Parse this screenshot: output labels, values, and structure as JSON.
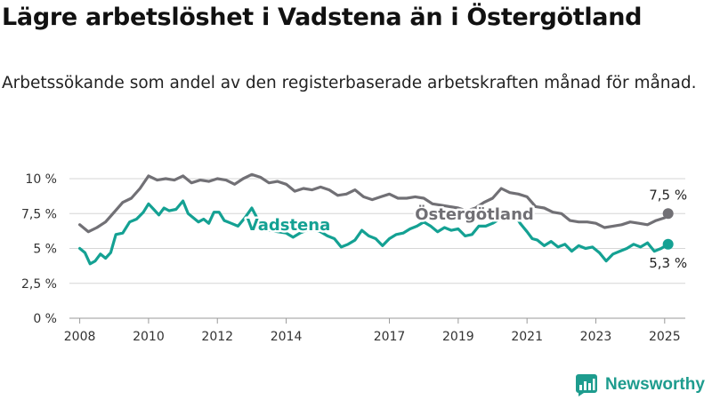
{
  "title": "Lägre arbetslöshet i Vadstena än i Östergötland",
  "subtitle": "Arbetssökande som andel av den registerbaserade arbetskraften månad för månad.",
  "brand": {
    "name": "Newsworthy",
    "icon": "bar-chart-logo-icon"
  },
  "colors": {
    "vadstena": "#14a193",
    "ostergotland": "#717075",
    "grid": "#d6d6d6",
    "brand": "#1e9c8e"
  },
  "chart_data": {
    "type": "line",
    "ylim": [
      0,
      10.5
    ],
    "xlim": [
      2007.7,
      2025.6
    ],
    "y_ticks": [
      0,
      2.5,
      5,
      7.5,
      10
    ],
    "y_tick_labels": [
      "0 %",
      "2,5 %",
      "5 %",
      "7,5 %",
      "10 %"
    ],
    "x_ticks": [
      2008,
      2010,
      2012,
      2014,
      2017,
      2019,
      2021,
      2023,
      2025
    ],
    "x_tick_labels": [
      "2008",
      "2010",
      "2012",
      "2014",
      "2017",
      "2019",
      "2021",
      "2023",
      "2025"
    ],
    "grid": true,
    "series": [
      {
        "name": "Östergötland",
        "end_label": "7,5 %",
        "points": [
          [
            2008.0,
            6.7
          ],
          [
            2008.25,
            6.2
          ],
          [
            2008.5,
            6.5
          ],
          [
            2008.75,
            6.9
          ],
          [
            2009.0,
            7.6
          ],
          [
            2009.25,
            8.3
          ],
          [
            2009.5,
            8.6
          ],
          [
            2009.75,
            9.3
          ],
          [
            2010.0,
            10.2
          ],
          [
            2010.25,
            9.9
          ],
          [
            2010.5,
            10.0
          ],
          [
            2010.75,
            9.9
          ],
          [
            2011.0,
            10.2
          ],
          [
            2011.25,
            9.7
          ],
          [
            2011.5,
            9.9
          ],
          [
            2011.75,
            9.8
          ],
          [
            2012.0,
            10.0
          ],
          [
            2012.25,
            9.9
          ],
          [
            2012.5,
            9.6
          ],
          [
            2012.75,
            10.0
          ],
          [
            2013.0,
            10.3
          ],
          [
            2013.25,
            10.1
          ],
          [
            2013.5,
            9.7
          ],
          [
            2013.75,
            9.8
          ],
          [
            2014.0,
            9.6
          ],
          [
            2014.25,
            9.1
          ],
          [
            2014.5,
            9.3
          ],
          [
            2014.75,
            9.2
          ],
          [
            2015.0,
            9.4
          ],
          [
            2015.25,
            9.2
          ],
          [
            2015.5,
            8.8
          ],
          [
            2015.75,
            8.9
          ],
          [
            2016.0,
            9.2
          ],
          [
            2016.25,
            8.7
          ],
          [
            2016.5,
            8.5
          ],
          [
            2016.75,
            8.7
          ],
          [
            2017.0,
            8.9
          ],
          [
            2017.25,
            8.6
          ],
          [
            2017.5,
            8.6
          ],
          [
            2017.75,
            8.7
          ],
          [
            2018.0,
            8.6
          ],
          [
            2018.25,
            8.2
          ],
          [
            2018.5,
            8.1
          ],
          [
            2018.75,
            8.0
          ],
          [
            2019.0,
            7.9
          ],
          [
            2019.25,
            7.7
          ],
          [
            2019.5,
            7.9
          ],
          [
            2019.75,
            8.3
          ],
          [
            2020.0,
            8.6
          ],
          [
            2020.25,
            9.3
          ],
          [
            2020.5,
            9.0
          ],
          [
            2020.75,
            8.9
          ],
          [
            2021.0,
            8.7
          ],
          [
            2021.25,
            8.0
          ],
          [
            2021.5,
            7.9
          ],
          [
            2021.75,
            7.6
          ],
          [
            2022.0,
            7.5
          ],
          [
            2022.25,
            7.0
          ],
          [
            2022.5,
            6.9
          ],
          [
            2022.75,
            6.9
          ],
          [
            2023.0,
            6.8
          ],
          [
            2023.25,
            6.5
          ],
          [
            2023.5,
            6.6
          ],
          [
            2023.75,
            6.7
          ],
          [
            2024.0,
            6.9
          ],
          [
            2024.25,
            6.8
          ],
          [
            2024.5,
            6.7
          ],
          [
            2024.75,
            7.0
          ],
          [
            2025.0,
            7.2
          ],
          [
            2025.1,
            7.5
          ]
        ]
      },
      {
        "name": "Vadstena",
        "end_label": "5,3 %",
        "points": [
          [
            2008.0,
            5.0
          ],
          [
            2008.15,
            4.7
          ],
          [
            2008.3,
            3.9
          ],
          [
            2008.45,
            4.1
          ],
          [
            2008.6,
            4.6
          ],
          [
            2008.75,
            4.3
          ],
          [
            2008.9,
            4.7
          ],
          [
            2009.05,
            6.0
          ],
          [
            2009.25,
            6.1
          ],
          [
            2009.45,
            6.9
          ],
          [
            2009.65,
            7.1
          ],
          [
            2009.85,
            7.6
          ],
          [
            2010.0,
            8.2
          ],
          [
            2010.15,
            7.8
          ],
          [
            2010.3,
            7.4
          ],
          [
            2010.45,
            7.9
          ],
          [
            2010.6,
            7.7
          ],
          [
            2010.8,
            7.8
          ],
          [
            2011.0,
            8.4
          ],
          [
            2011.15,
            7.5
          ],
          [
            2011.3,
            7.2
          ],
          [
            2011.45,
            6.9
          ],
          [
            2011.6,
            7.1
          ],
          [
            2011.75,
            6.8
          ],
          [
            2011.9,
            7.6
          ],
          [
            2012.05,
            7.6
          ],
          [
            2012.2,
            7.0
          ],
          [
            2012.4,
            6.8
          ],
          [
            2012.6,
            6.6
          ],
          [
            2012.8,
            7.2
          ],
          [
            2013.0,
            7.9
          ],
          [
            2013.15,
            7.2
          ],
          [
            2013.3,
            6.6
          ],
          [
            2013.5,
            6.3
          ],
          [
            2013.75,
            6.2
          ],
          [
            2014.0,
            6.1
          ],
          [
            2014.2,
            5.8
          ],
          [
            2014.4,
            6.1
          ],
          [
            2014.6,
            6.3
          ],
          [
            2014.8,
            6.3
          ],
          [
            2015.0,
            6.2
          ],
          [
            2015.2,
            5.9
          ],
          [
            2015.4,
            5.7
          ],
          [
            2015.6,
            5.1
          ],
          [
            2015.8,
            5.3
          ],
          [
            2016.0,
            5.6
          ],
          [
            2016.2,
            6.3
          ],
          [
            2016.4,
            5.9
          ],
          [
            2016.6,
            5.7
          ],
          [
            2016.8,
            5.2
          ],
          [
            2017.0,
            5.7
          ],
          [
            2017.2,
            6.0
          ],
          [
            2017.4,
            6.1
          ],
          [
            2017.6,
            6.4
          ],
          [
            2017.8,
            6.6
          ],
          [
            2018.0,
            6.9
          ],
          [
            2018.2,
            6.6
          ],
          [
            2018.4,
            6.2
          ],
          [
            2018.6,
            6.5
          ],
          [
            2018.8,
            6.3
          ],
          [
            2019.0,
            6.4
          ],
          [
            2019.2,
            5.9
          ],
          [
            2019.4,
            6.0
          ],
          [
            2019.6,
            6.6
          ],
          [
            2019.8,
            6.6
          ],
          [
            2020.0,
            6.8
          ],
          [
            2020.2,
            7.1
          ],
          [
            2020.4,
            7.3
          ],
          [
            2020.6,
            7.6
          ],
          [
            2020.8,
            6.8
          ],
          [
            2021.0,
            6.2
          ],
          [
            2021.15,
            5.7
          ],
          [
            2021.3,
            5.6
          ],
          [
            2021.5,
            5.2
          ],
          [
            2021.7,
            5.5
          ],
          [
            2021.9,
            5.1
          ],
          [
            2022.1,
            5.3
          ],
          [
            2022.3,
            4.8
          ],
          [
            2022.5,
            5.2
          ],
          [
            2022.7,
            5.0
          ],
          [
            2022.9,
            5.1
          ],
          [
            2023.1,
            4.7
          ],
          [
            2023.3,
            4.1
          ],
          [
            2023.5,
            4.6
          ],
          [
            2023.7,
            4.8
          ],
          [
            2023.9,
            5.0
          ],
          [
            2024.1,
            5.3
          ],
          [
            2024.3,
            5.1
          ],
          [
            2024.5,
            5.4
          ],
          [
            2024.7,
            4.8
          ],
          [
            2024.9,
            5.0
          ],
          [
            2025.1,
            5.3
          ]
        ]
      }
    ]
  }
}
